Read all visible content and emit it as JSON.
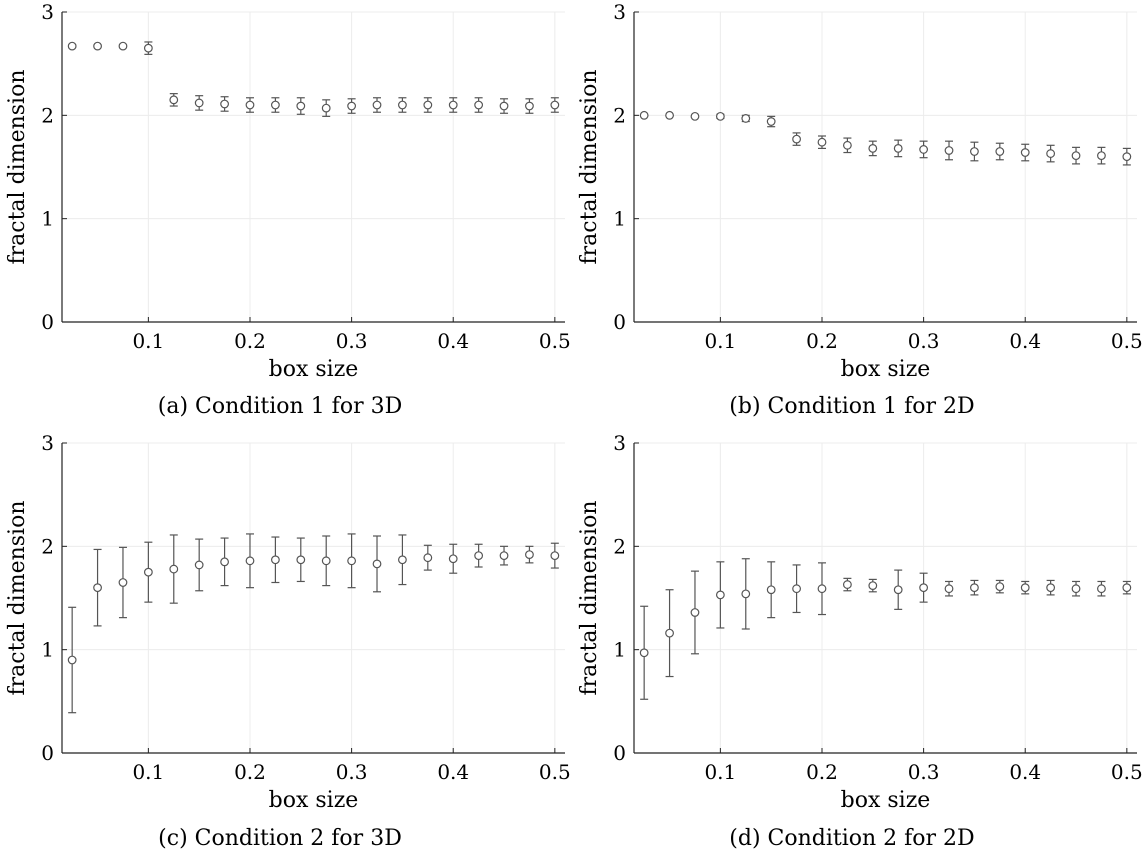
{
  "chart_data": [
    {
      "id": "a",
      "type": "scatter",
      "caption": "(a) Condition 1 for 3D",
      "xlabel": "box size",
      "ylabel": "fractal dimension",
      "xlim": [
        0.015,
        0.51
      ],
      "ylim": [
        0,
        3
      ],
      "xticks": [
        "0.1",
        "0.2",
        "0.3",
        "0.4",
        "0.5"
      ],
      "yticks": [
        "0",
        "1",
        "2",
        "3"
      ],
      "grid": true,
      "marker": "open-circle",
      "x": [
        0.025,
        0.05,
        0.075,
        0.1,
        0.125,
        0.15,
        0.175,
        0.2,
        0.225,
        0.25,
        0.275,
        0.3,
        0.325,
        0.35,
        0.375,
        0.4,
        0.425,
        0.45,
        0.475,
        0.5
      ],
      "y": [
        2.67,
        2.67,
        2.67,
        2.65,
        2.15,
        2.12,
        2.11,
        2.1,
        2.1,
        2.09,
        2.07,
        2.09,
        2.1,
        2.1,
        2.1,
        2.1,
        2.1,
        2.09,
        2.09,
        2.1
      ],
      "err": [
        0.01,
        0.01,
        0.01,
        0.06,
        0.06,
        0.07,
        0.07,
        0.07,
        0.07,
        0.08,
        0.08,
        0.07,
        0.07,
        0.07,
        0.07,
        0.07,
        0.07,
        0.07,
        0.07,
        0.07
      ]
    },
    {
      "id": "b",
      "type": "scatter",
      "caption": "(b) Condition 1 for 2D",
      "xlabel": "box size",
      "ylabel": "fractal dimension",
      "xlim": [
        0.015,
        0.51
      ],
      "ylim": [
        0,
        3
      ],
      "xticks": [
        "0.1",
        "0.2",
        "0.3",
        "0.4",
        "0.5"
      ],
      "yticks": [
        "0",
        "1",
        "2",
        "3"
      ],
      "grid": true,
      "marker": "open-circle",
      "x": [
        0.025,
        0.05,
        0.075,
        0.1,
        0.125,
        0.15,
        0.175,
        0.2,
        0.225,
        0.25,
        0.275,
        0.3,
        0.325,
        0.35,
        0.375,
        0.4,
        0.425,
        0.45,
        0.475,
        0.5
      ],
      "y": [
        2.0,
        2.0,
        1.99,
        1.99,
        1.97,
        1.94,
        1.77,
        1.74,
        1.71,
        1.68,
        1.68,
        1.67,
        1.66,
        1.65,
        1.65,
        1.64,
        1.63,
        1.61,
        1.61,
        1.6
      ],
      "err": [
        0.005,
        0.005,
        0.01,
        0.02,
        0.03,
        0.05,
        0.06,
        0.06,
        0.07,
        0.07,
        0.08,
        0.08,
        0.09,
        0.09,
        0.08,
        0.08,
        0.08,
        0.08,
        0.08,
        0.08
      ]
    },
    {
      "id": "c",
      "type": "scatter",
      "caption": "(c) Condition 2 for 3D",
      "xlabel": "box size",
      "ylabel": "fractal dimension",
      "xlim": [
        0.015,
        0.51
      ],
      "ylim": [
        0,
        3
      ],
      "xticks": [
        "0.1",
        "0.2",
        "0.3",
        "0.4",
        "0.5"
      ],
      "yticks": [
        "0",
        "1",
        "2",
        "3"
      ],
      "grid": true,
      "marker": "open-circle",
      "x": [
        0.025,
        0.05,
        0.075,
        0.1,
        0.125,
        0.15,
        0.175,
        0.2,
        0.225,
        0.25,
        0.275,
        0.3,
        0.325,
        0.35,
        0.375,
        0.4,
        0.425,
        0.45,
        0.475,
        0.5
      ],
      "y": [
        0.9,
        1.6,
        1.65,
        1.75,
        1.78,
        1.82,
        1.85,
        1.86,
        1.87,
        1.87,
        1.86,
        1.86,
        1.83,
        1.87,
        1.89,
        1.88,
        1.91,
        1.91,
        1.92,
        1.91
      ],
      "err": [
        0.51,
        0.37,
        0.34,
        0.29,
        0.33,
        0.25,
        0.23,
        0.26,
        0.22,
        0.21,
        0.24,
        0.26,
        0.27,
        0.24,
        0.12,
        0.14,
        0.11,
        0.09,
        0.08,
        0.12
      ]
    },
    {
      "id": "d",
      "type": "scatter",
      "caption": "(d) Condition 2 for 2D",
      "xlabel": "box size",
      "ylabel": "fractal dimension",
      "xlim": [
        0.015,
        0.51
      ],
      "ylim": [
        0,
        3
      ],
      "xticks": [
        "0.1",
        "0.2",
        "0.3",
        "0.4",
        "0.5"
      ],
      "yticks": [
        "0",
        "1",
        "2",
        "3"
      ],
      "grid": true,
      "marker": "open-circle",
      "x": [
        0.025,
        0.05,
        0.075,
        0.1,
        0.125,
        0.15,
        0.175,
        0.2,
        0.225,
        0.25,
        0.275,
        0.3,
        0.325,
        0.35,
        0.375,
        0.4,
        0.425,
        0.45,
        0.475,
        0.5
      ],
      "y": [
        0.97,
        1.16,
        1.36,
        1.53,
        1.54,
        1.58,
        1.59,
        1.59,
        1.63,
        1.62,
        1.58,
        1.6,
        1.59,
        1.6,
        1.61,
        1.6,
        1.6,
        1.59,
        1.59,
        1.6
      ],
      "err": [
        0.45,
        0.42,
        0.4,
        0.32,
        0.34,
        0.27,
        0.23,
        0.25,
        0.06,
        0.06,
        0.19,
        0.14,
        0.07,
        0.07,
        0.06,
        0.06,
        0.07,
        0.07,
        0.07,
        0.06
      ]
    }
  ],
  "colors": {
    "marker": "#555555",
    "grid": "#ececec",
    "axis": "#222222"
  }
}
